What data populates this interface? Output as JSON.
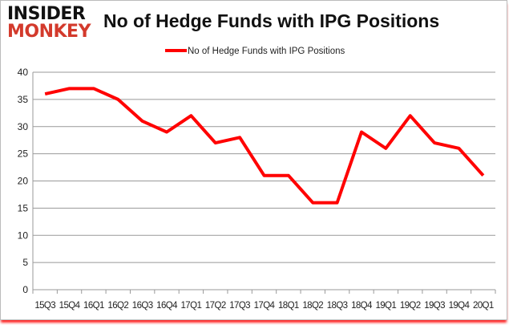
{
  "logo": {
    "line1": "INSIDER",
    "line2": "MONKEY"
  },
  "chart_data": {
    "type": "line",
    "title": "No of Hedge Funds with IPG Positions",
    "xlabel": "",
    "ylabel": "",
    "categories": [
      "15Q3",
      "15Q4",
      "16Q1",
      "16Q2",
      "16Q3",
      "16Q4",
      "17Q1",
      "17Q2",
      "17Q3",
      "17Q4",
      "18Q1",
      "18Q2",
      "18Q3",
      "18Q4",
      "19Q1",
      "19Q2",
      "19Q3",
      "19Q4",
      "20Q1"
    ],
    "series": [
      {
        "name": "No of Hedge Funds with IPG Positions",
        "color": "#ff0000",
        "values": [
          36,
          37,
          37,
          35,
          31,
          29,
          32,
          27,
          28,
          21,
          21,
          16,
          16,
          29,
          26,
          32,
          27,
          26,
          21
        ]
      }
    ],
    "ylim": [
      0,
      40
    ],
    "yticks": [
      0,
      5,
      10,
      15,
      20,
      25,
      30,
      35,
      40
    ],
    "grid": true,
    "legend": "top-center"
  }
}
